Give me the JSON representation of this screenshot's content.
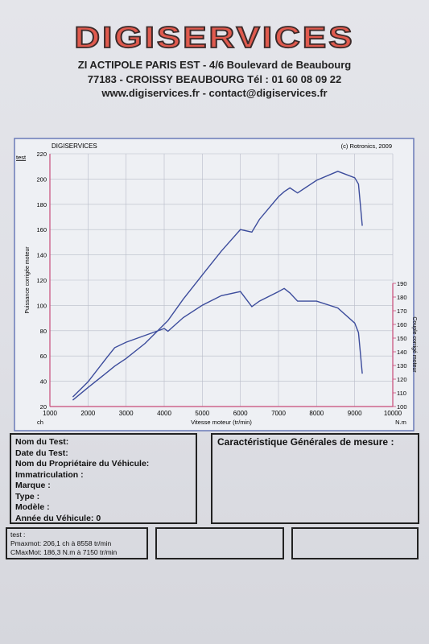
{
  "header": {
    "logo": "DIGISERVICES",
    "lines": [
      "ZI ACTIPOLE PARIS EST - 4/6 Boulevard de Beaubourg",
      "77183 - CROISSY BEAUBOURG Tél : 01 60 08 09 22",
      "www.digiservices.fr - contact@digiservices.fr"
    ]
  },
  "chart_data": {
    "type": "line",
    "title": "DIGISERVICES",
    "copyright": "(c) Rotronics, 2009",
    "test_label": "test",
    "x_label": "Vitesse moteur (tr/min)",
    "y_label": "Puissance corrigée moteur",
    "y2_label": "Couple corrigé moteur",
    "y_unit": "ch",
    "y2_unit": "N.m",
    "x": [
      1600,
      2000,
      2500,
      2700,
      3000,
      3500,
      4000,
      4100,
      4500,
      5000,
      5500,
      6000,
      6300,
      6500,
      7000,
      7150,
      7300,
      7500,
      8000,
      8558,
      9000,
      9100,
      9200
    ],
    "series": [
      {
        "name": "Puissance",
        "color": "#3c4c9c",
        "values": [
          25,
          35,
          47,
          52,
          58,
          70,
          85,
          88,
          105,
          124,
          143,
          160,
          158,
          168,
          186,
          190,
          193,
          189,
          199,
          206.1,
          201,
          196,
          163
        ]
      },
      {
        "name": "Couple",
        "color": "#3c4c9c",
        "axis": "y2",
        "values": [
          107,
          118,
          136,
          143,
          147,
          152,
          157,
          155,
          165,
          174,
          181,
          184,
          173,
          177,
          184,
          186.3,
          183,
          177,
          177,
          172,
          161,
          154,
          124
        ]
      }
    ],
    "xlim": [
      1000,
      10000
    ],
    "xticks": [
      1000,
      2000,
      3000,
      4000,
      5000,
      6000,
      7000,
      8000,
      9000,
      10000
    ],
    "ylim": [
      20,
      220
    ],
    "yticks": [
      20,
      40,
      60,
      80,
      100,
      120,
      140,
      160,
      180,
      200,
      220
    ],
    "y2lim": [
      100,
      190
    ],
    "y2ticks": [
      100,
      110,
      120,
      130,
      140,
      150,
      160,
      170,
      180,
      190
    ],
    "grid": true
  },
  "form": {
    "fields": [
      "Nom du Test:",
      "Date du Test:",
      "Nom du Propriétaire du Véhicule:",
      "Immatriculation :",
      "Marque :",
      "Type :",
      "Modèle :",
      "Année du Véhicule: 0"
    ],
    "right_title": "Caractéristique Générales de mesure :",
    "summary": [
      "test :",
      "Pmaxmot: 206,1 ch à 8558 tr/min",
      "CMaxMot: 186,3 N.m à 7150 tr/min"
    ]
  }
}
